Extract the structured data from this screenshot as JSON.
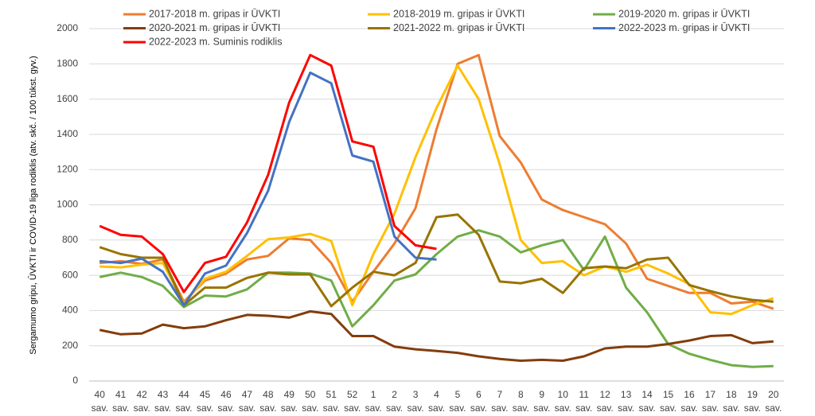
{
  "chart_data": {
    "type": "line",
    "y_label": "Sergamumo gripu, ŪVKTI ir COVID-19 liga rodiklis (atv. skč. / 100 tūkst. gyv.)",
    "categories": [
      [
        "40",
        "sav."
      ],
      [
        "41",
        "sav."
      ],
      [
        "42",
        "sav."
      ],
      [
        "43",
        "sav."
      ],
      [
        "44",
        "sav."
      ],
      [
        "45",
        "sav."
      ],
      [
        "46",
        "sav."
      ],
      [
        "47",
        "sav."
      ],
      [
        "48",
        "sav."
      ],
      [
        "49",
        "sav."
      ],
      [
        "50",
        "sav."
      ],
      [
        "51",
        "sav."
      ],
      [
        "52",
        "sav."
      ],
      [
        "1",
        "sav."
      ],
      [
        "2",
        "sav."
      ],
      [
        "3",
        "sav."
      ],
      [
        "4",
        "sav."
      ],
      [
        "5",
        "sav."
      ],
      [
        "6",
        "sav."
      ],
      [
        "7",
        "sav."
      ],
      [
        "8",
        "sav."
      ],
      [
        "9",
        "sav."
      ],
      [
        "10",
        "sav."
      ],
      [
        "11",
        "sav."
      ],
      [
        "12",
        "sav."
      ],
      [
        "13",
        "sav."
      ],
      [
        "14",
        "sav."
      ],
      [
        "15",
        "sav."
      ],
      [
        "16",
        "sav."
      ],
      [
        "17",
        "sav."
      ],
      [
        "18",
        "sav."
      ],
      [
        "19",
        "sav."
      ],
      [
        "20",
        "sav."
      ]
    ],
    "ylim": [
      0,
      2000
    ],
    "yticks": [
      0,
      200,
      400,
      600,
      800,
      1000,
      1200,
      1400,
      1600,
      1800,
      2000
    ],
    "grid": true,
    "series": [
      {
        "name": "2017-2018 m. gripas ir ŪVKTI",
        "color": "#ED7D31",
        "values": [
          670,
          680,
          665,
          690,
          450,
          570,
          610,
          690,
          710,
          810,
          800,
          670,
          450,
          620,
          780,
          980,
          1430,
          1800,
          1850,
          1390,
          1240,
          1030,
          970,
          930,
          890,
          780,
          580,
          540,
          500,
          500,
          440,
          450,
          410
        ]
      },
      {
        "name": "2018-2019 m. gripas ir ŪVKTI",
        "color": "#FFC000",
        "values": [
          650,
          645,
          660,
          670,
          440,
          580,
          620,
          710,
          805,
          815,
          835,
          795,
          430,
          720,
          950,
          1270,
          1550,
          1790,
          1600,
          1230,
          800,
          670,
          680,
          600,
          650,
          620,
          660,
          610,
          550,
          390,
          380,
          430,
          470
        ]
      },
      {
        "name": "2019-2020 m. gripas ir ŪVKTI",
        "color": "#70AD47",
        "values": [
          590,
          615,
          590,
          540,
          420,
          485,
          480,
          520,
          615,
          615,
          610,
          570,
          310,
          430,
          570,
          605,
          720,
          820,
          855,
          820,
          730,
          770,
          800,
          630,
          820,
          530,
          390,
          210,
          155,
          120,
          90,
          80,
          85
        ]
      },
      {
        "name": "2020-2021 m. gripas ir ŪVKTI",
        "color": "#843C0C",
        "values": [
          290,
          265,
          270,
          320,
          300,
          310,
          345,
          375,
          370,
          360,
          395,
          380,
          255,
          255,
          195,
          180,
          170,
          160,
          140,
          125,
          115,
          120,
          115,
          140,
          185,
          195,
          195,
          210,
          230,
          255,
          260,
          215,
          225
        ]
      },
      {
        "name": "2021-2022 m. gripas ir ŪVKTI",
        "color": "#997300",
        "values": [
          760,
          720,
          700,
          700,
          430,
          530,
          530,
          585,
          615,
          605,
          605,
          425,
          530,
          620,
          600,
          670,
          930,
          945,
          830,
          565,
          555,
          580,
          500,
          640,
          650,
          640,
          690,
          700,
          545,
          510,
          480,
          460,
          450
        ]
      },
      {
        "name": "2022-2023 m. gripas ir ŪVKTI",
        "color": "#4472C4",
        "values": [
          680,
          670,
          695,
          620,
          430,
          610,
          655,
          840,
          1080,
          1470,
          1750,
          1690,
          1280,
          1245,
          820,
          700,
          690,
          null,
          null,
          null,
          null,
          null,
          null,
          null,
          null,
          null,
          null,
          null,
          null,
          null,
          null,
          null,
          null
        ]
      },
      {
        "name": "2022-2023 m. Suminis rodiklis",
        "color": "#FF0000",
        "values": [
          880,
          830,
          820,
          720,
          505,
          670,
          705,
          900,
          1170,
          1580,
          1850,
          1790,
          1360,
          1330,
          880,
          770,
          750,
          null,
          null,
          null,
          null,
          null,
          null,
          null,
          null,
          null,
          null,
          null,
          null,
          null,
          null,
          null,
          null
        ]
      }
    ]
  }
}
